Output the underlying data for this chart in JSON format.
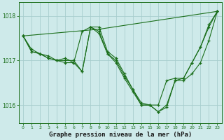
{
  "title": "Graphe pression niveau de la mer (hPa)",
  "bg_color": "#ceeaea",
  "line_color": "#1a6e1a",
  "grid_color": "#a8cece",
  "xlim": [
    -0.5,
    23.5
  ],
  "ylim": [
    1015.6,
    1018.3
  ],
  "yticks": [
    1016,
    1017,
    1018
  ],
  "xticks": [
    0,
    1,
    2,
    3,
    4,
    5,
    6,
    7,
    8,
    9,
    10,
    11,
    12,
    13,
    14,
    15,
    16,
    17,
    18,
    19,
    20,
    21,
    22,
    23
  ],
  "series": [
    {
      "x": [
        0,
        9,
        23
      ],
      "y": [
        1017.55,
        1017.7,
        1018.1
      ]
    },
    {
      "x": [
        0,
        1,
        2,
        3,
        4,
        5,
        6,
        7,
        8,
        9,
        10,
        11,
        12,
        13,
        14,
        15,
        16,
        17,
        18,
        19,
        20,
        21,
        22,
        23
      ],
      "y": [
        1017.55,
        1017.25,
        1017.15,
        1017.05,
        1017.0,
        1017.0,
        1017.0,
        1016.75,
        1017.75,
        1017.65,
        1017.15,
        1017.0,
        1016.65,
        1016.35,
        1016.0,
        1016.0,
        1016.0,
        1016.55,
        1016.6,
        1016.6,
        1016.95,
        1017.3,
        1017.75,
        1018.1
      ]
    },
    {
      "x": [
        0,
        1,
        2,
        3,
        4,
        5,
        6,
        7,
        8,
        9,
        10,
        11,
        12,
        13,
        14,
        15,
        16,
        17,
        18,
        19,
        20,
        21,
        22,
        23
      ],
      "y": [
        1017.55,
        1017.2,
        1017.15,
        1017.1,
        1017.0,
        1017.05,
        1016.95,
        1016.75,
        1017.75,
        1017.75,
        1017.2,
        1017.05,
        1016.7,
        1016.35,
        1016.05,
        1016.0,
        1015.85,
        1016.0,
        1016.55,
        1016.55,
        1016.7,
        1016.95,
        1017.45,
        1018.1
      ]
    },
    {
      "x": [
        0,
        1,
        2,
        3,
        4,
        5,
        6,
        7,
        8,
        9,
        10,
        11,
        12,
        13,
        14,
        15,
        16,
        17,
        18,
        19,
        20,
        21,
        22,
        23
      ],
      "y": [
        1017.55,
        1017.2,
        1017.15,
        1017.05,
        1017.0,
        1016.95,
        1016.95,
        1017.65,
        1017.75,
        1017.6,
        1017.15,
        1016.95,
        1016.6,
        1016.3,
        1016.0,
        1016.0,
        1015.85,
        1015.95,
        1016.55,
        1016.6,
        1016.95,
        1017.3,
        1017.8,
        1018.1
      ]
    }
  ]
}
